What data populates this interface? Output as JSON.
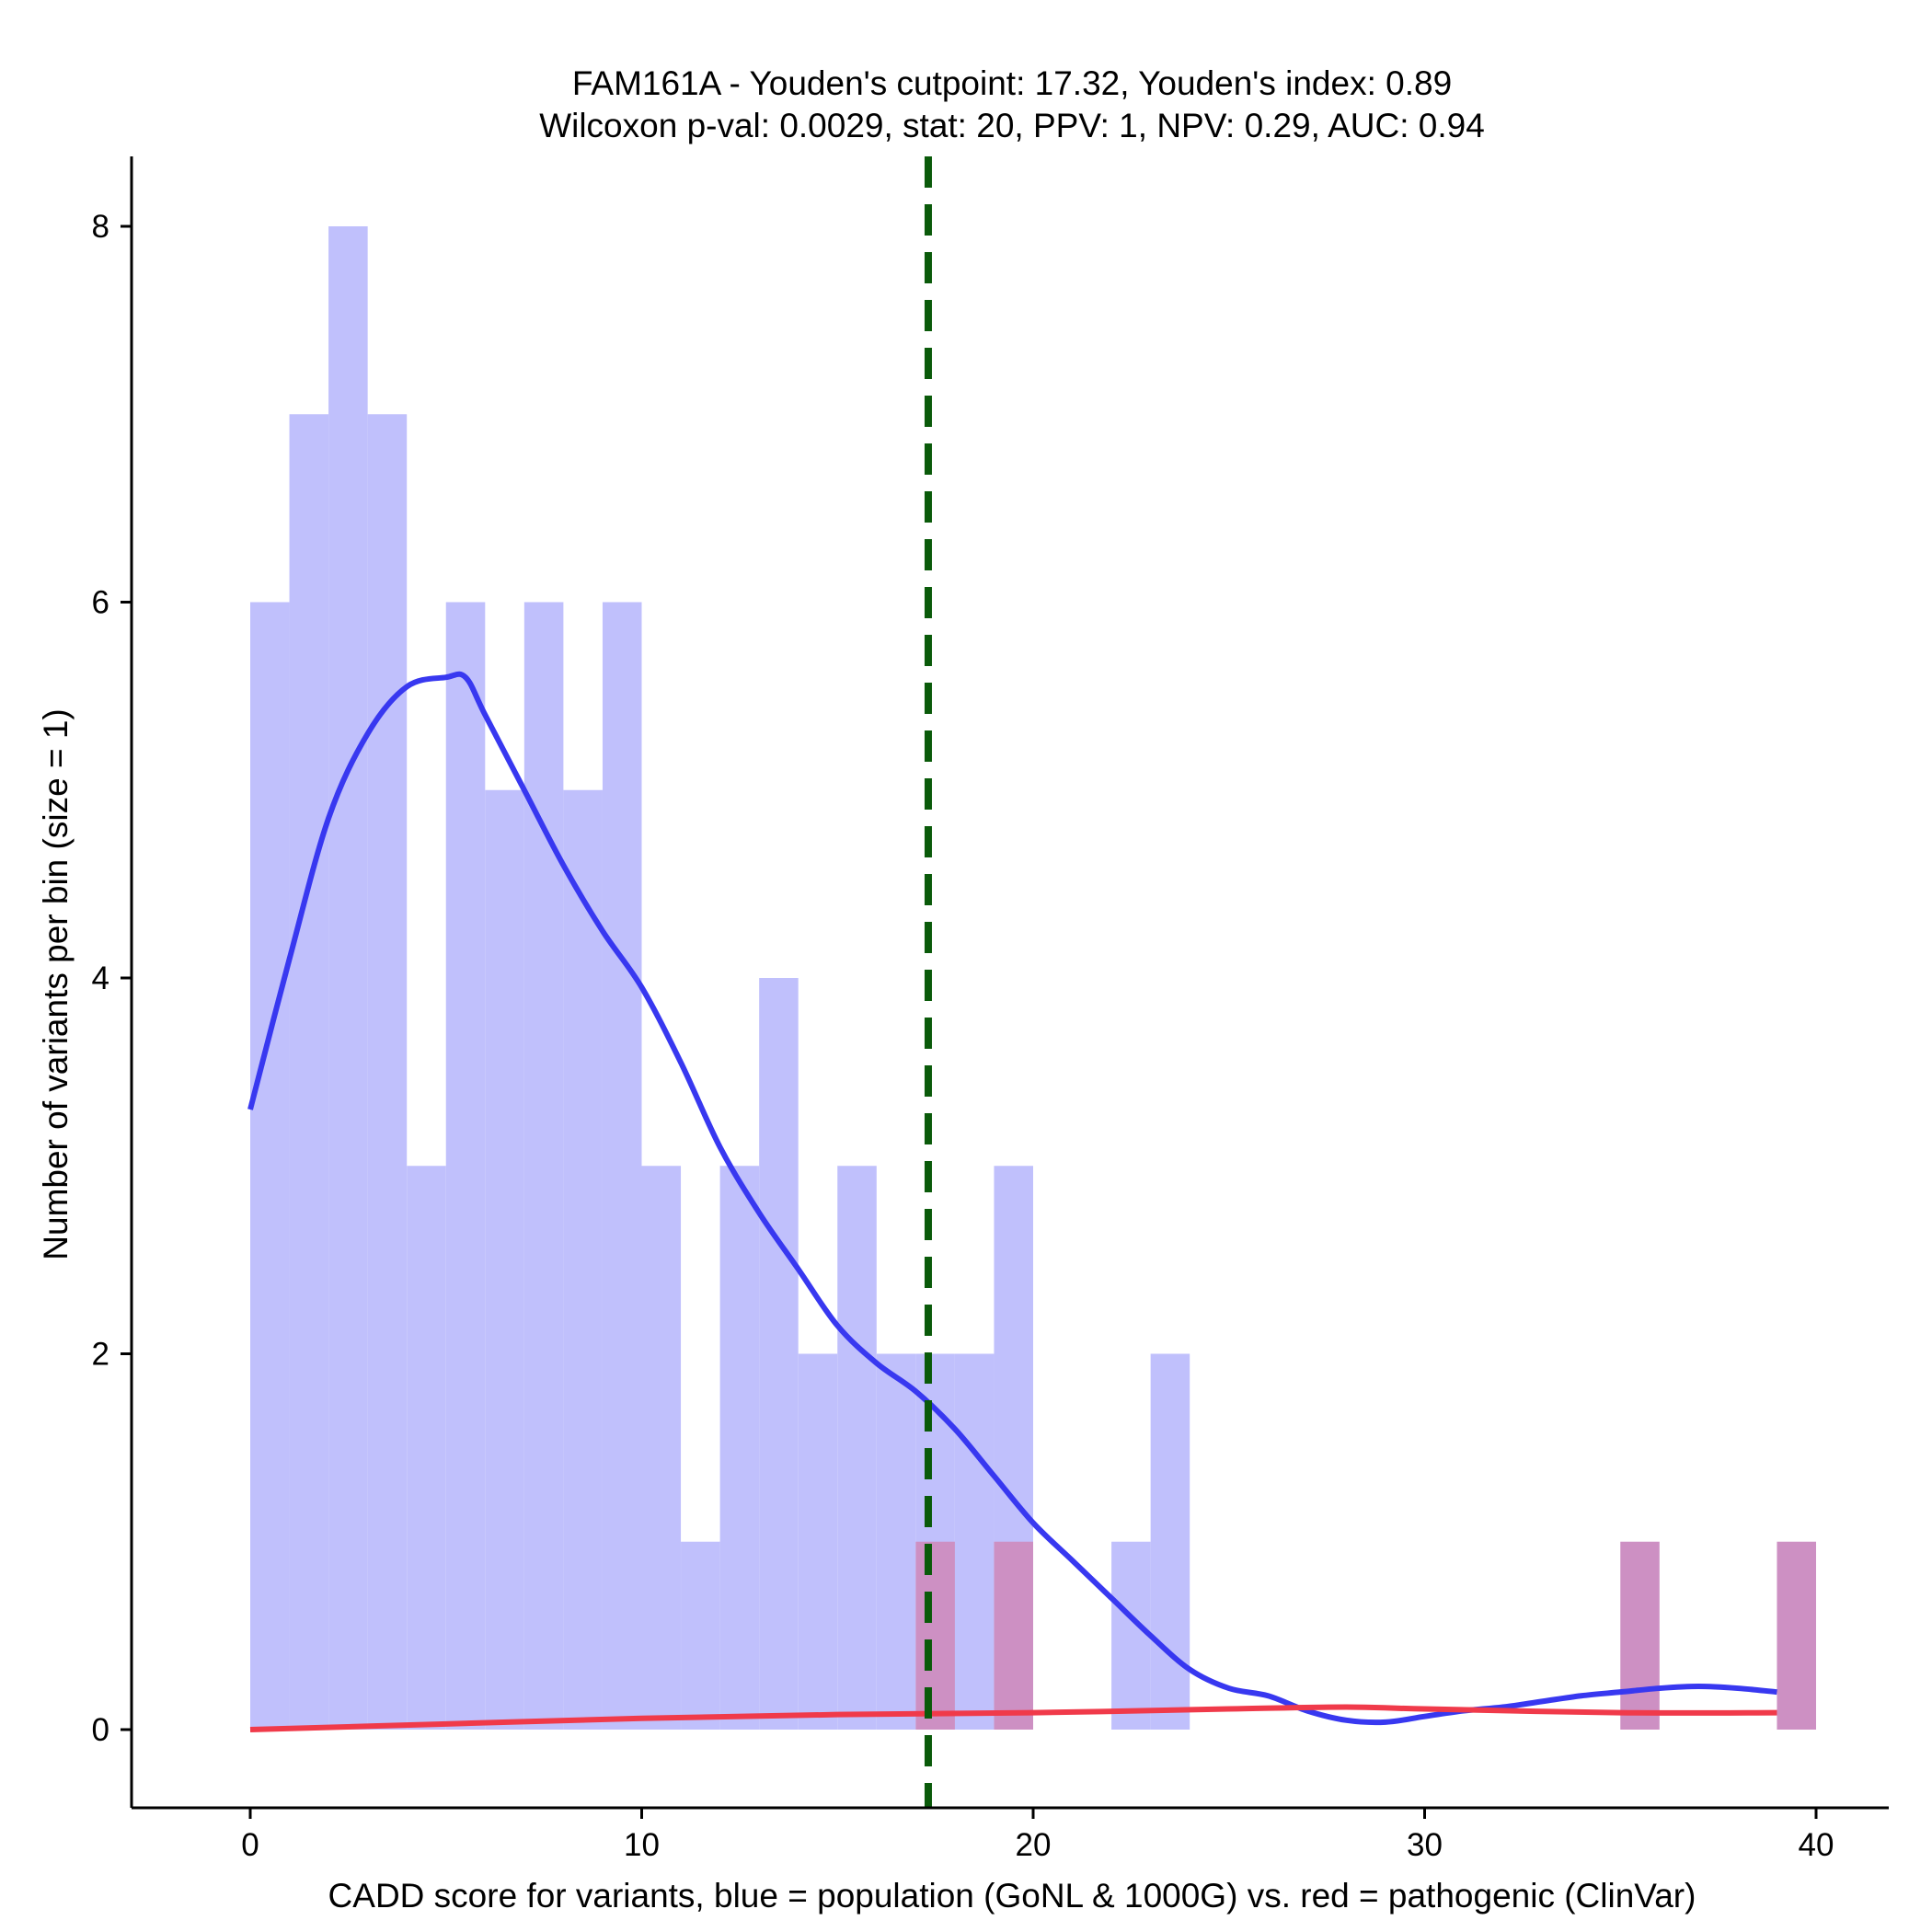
{
  "chart_data": {
    "type": "bar",
    "title_line1": "FAM161A - Youden's cutpoint: 17.32, Youden's index: 0.89",
    "title_line2": "Wilcoxon p-val: 0.0029, stat: 20, PPV: 1, NPV: 0.29, AUC: 0.94",
    "xlabel": "CADD score for variants, blue = population (GoNL & 1000G) vs. red = pathogenic (ClinVar)",
    "ylabel": "Number of variants per bin (size = 1)",
    "xlim": [
      -3,
      42
    ],
    "ylim": [
      -0.4,
      8.4
    ],
    "x_ticks": [
      0,
      10,
      20,
      30,
      40
    ],
    "y_ticks": [
      0,
      2,
      4,
      6,
      8
    ],
    "bin_width": 1,
    "cutpoint": 17.32,
    "colors": {
      "population_bar": "#c0c0fc",
      "pathogenic_bar": "#cd90c3",
      "population_line": "#3838f0",
      "pathogenic_line": "#f03a4a",
      "cutpoint_line": "#0a5a0a"
    },
    "series": [
      {
        "name": "population",
        "bin_starts": [
          0,
          1,
          2,
          3,
          4,
          5,
          6,
          7,
          8,
          9,
          10,
          11,
          12,
          13,
          14,
          15,
          16,
          17,
          18,
          19,
          22,
          23
        ],
        "values": [
          6,
          7,
          8,
          7,
          3,
          6,
          5,
          6,
          5,
          6,
          3,
          1,
          3,
          4,
          2,
          3,
          2,
          2,
          2,
          3,
          1,
          2
        ]
      },
      {
        "name": "pathogenic",
        "bin_starts": [
          17,
          19,
          35,
          39
        ],
        "values": [
          1,
          1,
          1,
          1
        ]
      }
    ],
    "density_curves": [
      {
        "name": "population",
        "x": [
          0,
          1,
          2,
          3,
          4,
          5,
          5.5,
          6,
          7,
          8,
          9,
          10,
          11,
          12,
          13,
          14,
          15,
          16,
          17,
          18,
          19,
          20,
          21,
          22,
          23,
          24,
          25,
          26,
          27,
          28,
          29,
          30,
          31,
          32,
          33,
          34,
          35,
          36,
          37,
          38,
          39
        ],
        "y": [
          3.3,
          4.1,
          4.85,
          5.3,
          5.55,
          5.6,
          5.6,
          5.4,
          5.0,
          4.6,
          4.25,
          3.95,
          3.55,
          3.1,
          2.75,
          2.45,
          2.15,
          1.95,
          1.8,
          1.6,
          1.35,
          1.1,
          0.9,
          0.7,
          0.5,
          0.32,
          0.22,
          0.18,
          0.1,
          0.05,
          0.04,
          0.07,
          0.1,
          0.12,
          0.15,
          0.18,
          0.2,
          0.22,
          0.23,
          0.22,
          0.2
        ]
      },
      {
        "name": "pathogenic",
        "x": [
          0,
          5,
          10,
          15,
          20,
          25,
          28,
          30,
          35,
          39
        ],
        "y": [
          0,
          0.03,
          0.06,
          0.08,
          0.09,
          0.11,
          0.12,
          0.11,
          0.09,
          0.09
        ]
      }
    ]
  }
}
